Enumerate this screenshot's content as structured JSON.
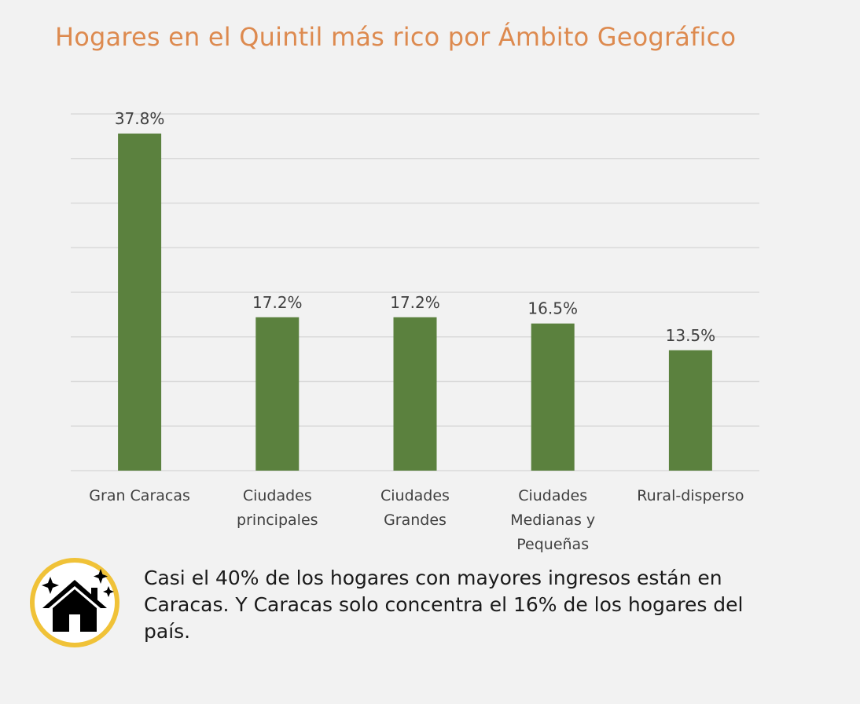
{
  "colors": {
    "title": "#dd8a4f",
    "bar": "#5b813e",
    "grid": "#d9d9d9",
    "icon_ring": "#f0c238"
  },
  "chart_data": {
    "type": "bar",
    "title": "Hogares en el Quintil más rico por Ámbito Geográfico",
    "categories": [
      "Gran Caracas",
      "Ciudades principales",
      "Ciudades Grandes",
      "Ciudades Medianas y Pequeñas",
      "Rural-disperso"
    ],
    "category_lines": [
      [
        "Gran Caracas"
      ],
      [
        "Ciudades",
        "principales"
      ],
      [
        "Ciudades",
        "Grandes"
      ],
      [
        "Ciudades",
        "Medianas y",
        "Pequeñas"
      ],
      [
        "Rural-disperso"
      ]
    ],
    "values": [
      37.8,
      17.2,
      17.2,
      16.5,
      13.5
    ],
    "data_labels": [
      "37.8%",
      "17.2%",
      "17.2%",
      "16.5%",
      "13.5%"
    ],
    "ylim": [
      0,
      40
    ],
    "grid": true,
    "legend": "none"
  },
  "note": {
    "icon": "house-sparkle-icon",
    "text": "Casi el 40% de los hogares con mayores ingresos están en Caracas. Y Caracas solo concentra el 16% de los hogares del país."
  }
}
